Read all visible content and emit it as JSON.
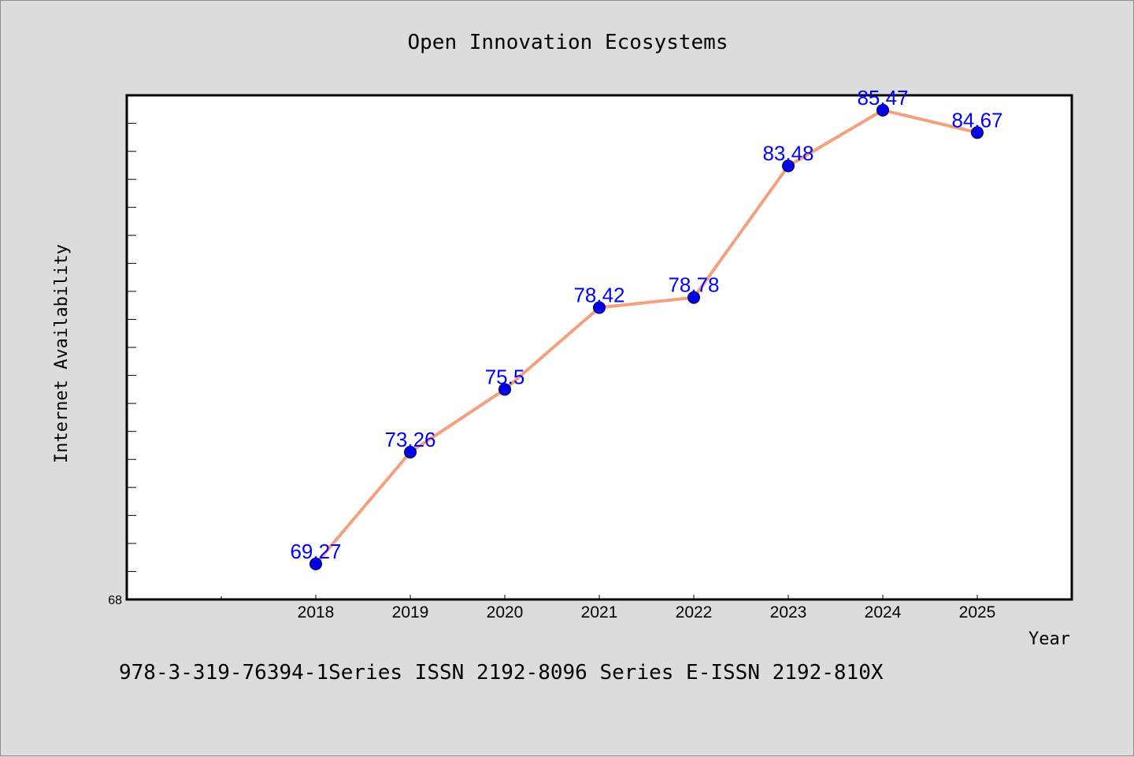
{
  "chart_data": {
    "type": "line",
    "title": "Open Innovation Ecosystems",
    "xlabel": "Year",
    "ylabel": "Internet Availability",
    "categories": [
      "2018",
      "2019",
      "2020",
      "2021",
      "2022",
      "2023",
      "2024",
      "2025"
    ],
    "x_slots": 10,
    "series": [
      {
        "values": [
          69.27,
          73.26,
          75.5,
          78.42,
          78.78,
          83.48,
          85.47,
          84.67
        ],
        "data_labels": [
          "69.27",
          "73.26",
          "75.5",
          "78.42",
          "78.78",
          "83.48",
          "85.47",
          "84.67"
        ],
        "line_color": "#f4a07e",
        "marker_color": "#0000ee",
        "label_color": "#0000ff"
      }
    ],
    "ylim": [
      68,
      86
    ],
    "y_tick_labels": [
      "68"
    ],
    "y_minor_tick_step": 1,
    "grid": false,
    "legend": "none"
  },
  "footer": {
    "text": "978-3-319-76394-1Series ISSN 2192-8096 Series E-ISSN 2192-810X"
  },
  "colors": {
    "background": "#dcdcdc",
    "plot_background": "#ffffff",
    "axis": "#000000"
  }
}
